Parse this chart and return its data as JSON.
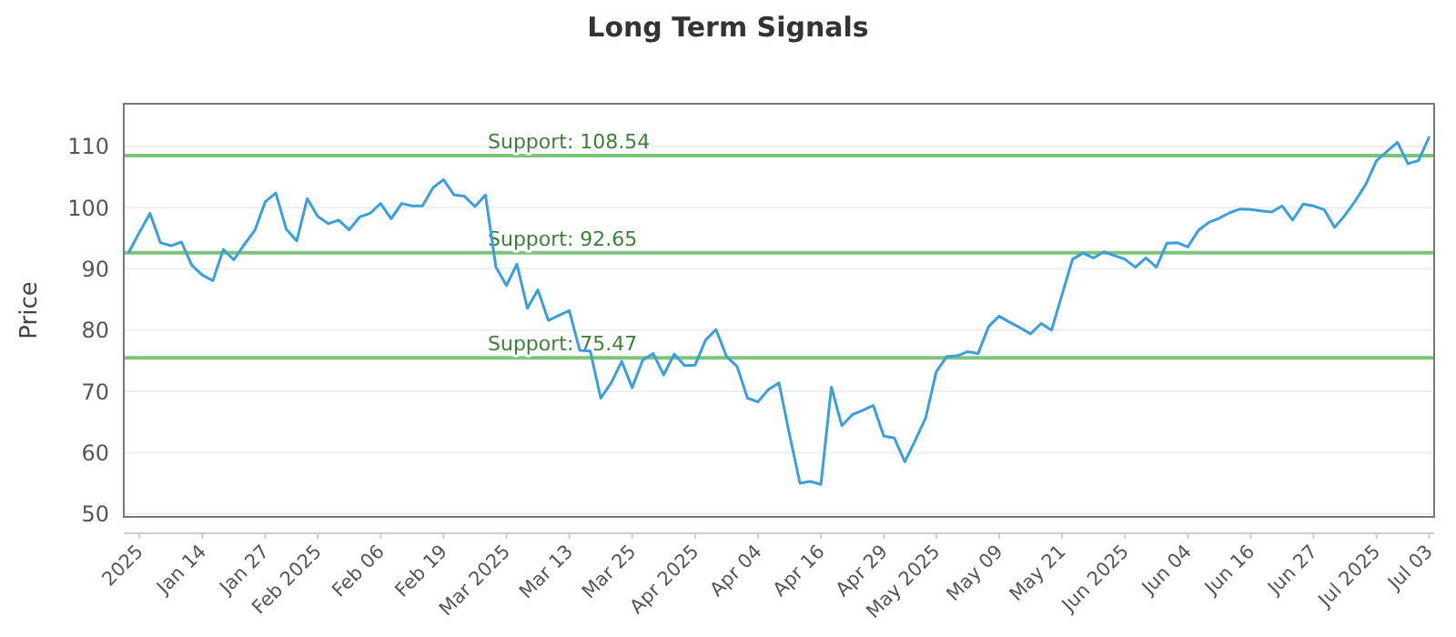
{
  "chart_data": {
    "type": "line",
    "title": "Long Term Signals",
    "ylabel": "Price",
    "categories": [
      null,
      "2025",
      null,
      null,
      null,
      null,
      null,
      "Jan 14",
      null,
      null,
      null,
      null,
      null,
      "Jan 27",
      null,
      null,
      null,
      null,
      "Feb 2025",
      null,
      null,
      null,
      null,
      null,
      "Feb 06",
      null,
      null,
      null,
      null,
      null,
      "Feb 19",
      null,
      null,
      null,
      null,
      null,
      "Mar 2025",
      null,
      null,
      null,
      null,
      null,
      "Mar 13",
      null,
      null,
      null,
      null,
      null,
      "Mar 25",
      null,
      null,
      null,
      null,
      null,
      "Apr 2025",
      null,
      null,
      null,
      null,
      null,
      "Apr 04",
      null,
      null,
      null,
      null,
      null,
      "Apr 16",
      null,
      null,
      null,
      null,
      null,
      "Apr 29",
      null,
      null,
      null,
      null,
      "May 2025",
      null,
      null,
      null,
      null,
      null,
      "May 09",
      null,
      null,
      null,
      null,
      null,
      "May 21",
      null,
      null,
      null,
      null,
      null,
      "Jun 2025",
      null,
      null,
      null,
      null,
      null,
      "Jun 04",
      null,
      null,
      null,
      null,
      null,
      "Jun 16",
      null,
      null,
      null,
      null,
      null,
      "Jun 27",
      null,
      null,
      null,
      null,
      null,
      "Jul 2025",
      null,
      null,
      null,
      null,
      "Jul 03"
    ],
    "series": [
      {
        "color": "#3aa0dc",
        "values": [
          92.8,
          96.0,
          99.1,
          94.3,
          93.8,
          94.4,
          90.6,
          89.0,
          88.1,
          93.2,
          91.5,
          94.0,
          96.3,
          101.0,
          102.4,
          96.5,
          94.6,
          101.5,
          98.6,
          97.4,
          98.0,
          96.4,
          98.5,
          99.1,
          100.7,
          98.2,
          100.7,
          100.3,
          100.3,
          103.3,
          104.6,
          102.1,
          101.9,
          100.2,
          102.1,
          90.3,
          87.3,
          90.8,
          83.6,
          86.6,
          81.6,
          82.4,
          83.2,
          76.7,
          76.6,
          68.9,
          71.4,
          74.9,
          70.6,
          75.1,
          76.2,
          72.7,
          76.1,
          74.2,
          74.3,
          78.4,
          80.1,
          75.7,
          74.1,
          68.9,
          68.3,
          70.3,
          71.4,
          63.0,
          55.0,
          55.3,
          54.8,
          70.7,
          64.4,
          66.2,
          66.9,
          67.7,
          62.7,
          62.4,
          58.5,
          62.0,
          65.7,
          73.2,
          75.7,
          75.8,
          76.5,
          76.2,
          80.6,
          82.3,
          81.3,
          80.4,
          79.4,
          81.1,
          80.0,
          85.8,
          91.6,
          92.6,
          91.8,
          92.8,
          92.2,
          91.6,
          90.3,
          91.8,
          90.3,
          94.2,
          94.3,
          93.6,
          96.3,
          97.6,
          98.3,
          99.2,
          99.8,
          99.7,
          99.5,
          99.3,
          100.3,
          98.0,
          100.6,
          100.3,
          99.7,
          96.8,
          98.8,
          101.2,
          103.9,
          107.7,
          109.2,
          110.7,
          107.2,
          107.7,
          111.5
        ]
      }
    ],
    "ylim": [
      49.5,
      117
    ],
    "yticks": [
      50,
      60,
      70,
      80,
      90,
      100,
      110
    ],
    "grid": "y",
    "ref_lines": [
      {
        "axis": "y",
        "value": 108.54,
        "label": "Support: 108.54",
        "color": "#7cc47a"
      },
      {
        "axis": "y",
        "value": 92.65,
        "label": "Support: 92.65",
        "color": "#7cc47a"
      },
      {
        "axis": "y",
        "value": 75.47,
        "label": "Support: 75.47",
        "color": "#7cc47a"
      }
    ]
  }
}
